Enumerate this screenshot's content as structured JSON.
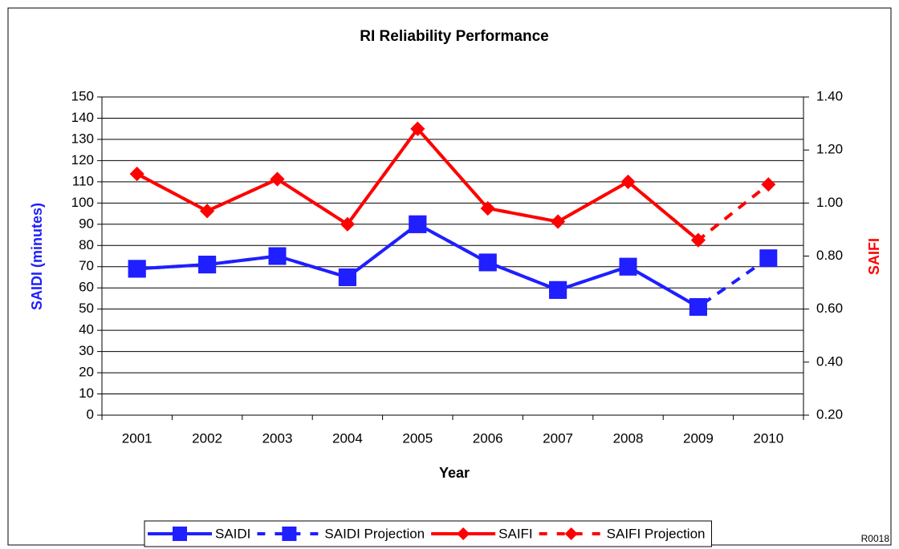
{
  "chart_data": {
    "type": "line",
    "title": "RI Reliability Performance",
    "x_label": "Year",
    "y_label": "SAIDI (minutes)",
    "y2_label": "SAIFI",
    "footer": "R0018",
    "categories": [
      "2001",
      "2002",
      "2003",
      "2004",
      "2005",
      "2006",
      "2007",
      "2008",
      "2009",
      "2010"
    ],
    "ylim": [
      0,
      150
    ],
    "yticks": [
      0,
      10,
      20,
      30,
      40,
      50,
      60,
      70,
      80,
      90,
      100,
      110,
      120,
      130,
      140,
      150
    ],
    "y2lim": [
      0.2,
      1.4
    ],
    "y2ticks": [
      {
        "value": 0.2,
        "label": "0.20"
      },
      {
        "value": 0.4,
        "label": "0.40"
      },
      {
        "value": 0.6,
        "label": "0.60"
      },
      {
        "value": 0.8,
        "label": "0.80"
      },
      {
        "value": 1.0,
        "label": "1.00"
      },
      {
        "value": 1.2,
        "label": "1.20"
      },
      {
        "value": 1.4,
        "label": "1.40"
      }
    ],
    "grid": true,
    "legend": "bottom",
    "series": [
      {
        "name": "SAIDI",
        "color": "#1f1fff",
        "marker": "square",
        "dash": false,
        "values": [
          69,
          71,
          75,
          65,
          90,
          72,
          59,
          70,
          51,
          null
        ]
      },
      {
        "name": "SAIDI Projection",
        "color": "#1f1fff",
        "marker": "square",
        "dash": true,
        "values": [
          69,
          71,
          75,
          65,
          90,
          72,
          59,
          70,
          51,
          74
        ]
      },
      {
        "name": "SAIFI",
        "color": "#ff0000",
        "marker": "diamond",
        "dash": false,
        "axis": "y2",
        "values": [
          1.11,
          0.97,
          1.09,
          0.92,
          1.28,
          0.98,
          0.93,
          1.08,
          0.86,
          null
        ]
      },
      {
        "name": "SAIFI Projection",
        "color": "#ff0000",
        "marker": "diamond",
        "dash": true,
        "axis": "y2",
        "values": [
          1.11,
          0.97,
          1.09,
          0.92,
          1.28,
          0.98,
          0.93,
          1.08,
          0.86,
          1.07
        ]
      }
    ]
  }
}
